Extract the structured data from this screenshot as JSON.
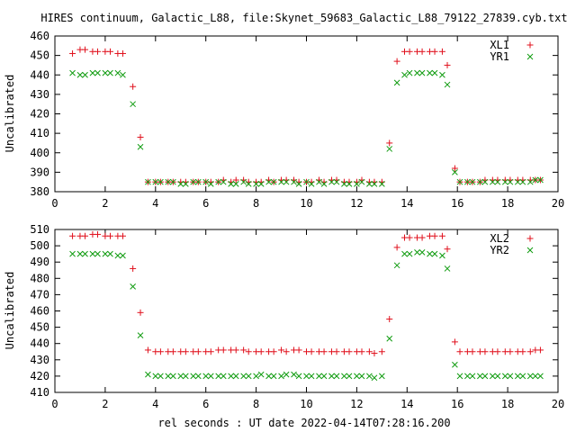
{
  "title": "HIRES continuum, Galactic_L88, file:Skynet_59683_Galactic_L88_79122_27839.cyb.txt",
  "xlabel": "rel seconds : UT date 2022-04-14T07:28:16.200",
  "chart_data": [
    {
      "type": "scatter",
      "title": "HIRES continuum, Galactic_L88, file:Skynet_59683_Galactic_L88_79122_27839.cyb.txt",
      "xlabel": "",
      "ylabel": "Uncalibrated",
      "xlim": [
        0,
        20
      ],
      "ylim": [
        380,
        460
      ],
      "xticks": [
        0,
        2,
        4,
        6,
        8,
        10,
        12,
        14,
        16,
        18,
        20
      ],
      "yticks": [
        380,
        390,
        400,
        410,
        420,
        430,
        440,
        450,
        460
      ],
      "grid": false,
      "legend_position": "top-right",
      "x": [
        0.7,
        1.0,
        1.2,
        1.5,
        1.7,
        2.0,
        2.2,
        2.5,
        2.7,
        3.1,
        3.4,
        3.7,
        4.0,
        4.2,
        4.5,
        4.7,
        5.0,
        5.2,
        5.5,
        5.7,
        6.0,
        6.2,
        6.5,
        6.7,
        7.0,
        7.2,
        7.5,
        7.7,
        8.0,
        8.2,
        8.5,
        8.7,
        9.0,
        9.2,
        9.5,
        9.7,
        10.0,
        10.2,
        10.5,
        10.7,
        11.0,
        11.2,
        11.5,
        11.7,
        12.0,
        12.2,
        12.5,
        12.7,
        13.0,
        13.3,
        13.6,
        13.9,
        14.1,
        14.4,
        14.6,
        14.9,
        15.1,
        15.4,
        15.6,
        15.9,
        16.1,
        16.4,
        16.6,
        16.9,
        17.1,
        17.4,
        17.6,
        17.9,
        18.1,
        18.4,
        18.6,
        18.9,
        19.1,
        19.3
      ],
      "series": [
        {
          "name": "XL1",
          "color": "#e0101c",
          "marker": "plus",
          "values": [
            451,
            453,
            453,
            452,
            452,
            452,
            452,
            451,
            451,
            434,
            408,
            385,
            385,
            385,
            385,
            385,
            385,
            385,
            385,
            385,
            385,
            385,
            385,
            386,
            385,
            386,
            386,
            385,
            385,
            385,
            386,
            385,
            386,
            386,
            386,
            385,
            385,
            385,
            386,
            385,
            386,
            386,
            385,
            385,
            385,
            386,
            385,
            385,
            385,
            405,
            447,
            452,
            452,
            452,
            452,
            452,
            452,
            452,
            445,
            392,
            385,
            385,
            385,
            385,
            386,
            386,
            386,
            386,
            386,
            386,
            386,
            386,
            386,
            386
          ]
        },
        {
          "name": "YR1",
          "color": "#119c11",
          "marker": "x",
          "values": [
            441,
            440,
            440,
            441,
            441,
            441,
            441,
            441,
            440,
            425,
            403,
            385,
            385,
            385,
            385,
            385,
            384,
            384,
            385,
            385,
            385,
            384,
            385,
            385,
            384,
            384,
            385,
            384,
            384,
            384,
            385,
            385,
            385,
            385,
            385,
            384,
            385,
            384,
            385,
            384,
            385,
            385,
            384,
            384,
            384,
            385,
            384,
            384,
            384,
            402,
            436,
            440,
            441,
            441,
            441,
            441,
            441,
            440,
            435,
            390,
            385,
            385,
            385,
            385,
            385,
            385,
            385,
            385,
            385,
            385,
            385,
            385,
            386,
            386
          ]
        }
      ]
    },
    {
      "type": "scatter",
      "title": "",
      "xlabel": "rel seconds : UT date 2022-04-14T07:28:16.200",
      "ylabel": "Uncalibrated",
      "xlim": [
        0,
        20
      ],
      "ylim": [
        410,
        510
      ],
      "xticks": [
        0,
        2,
        4,
        6,
        8,
        10,
        12,
        14,
        16,
        18,
        20
      ],
      "yticks": [
        410,
        420,
        430,
        440,
        450,
        460,
        470,
        480,
        490,
        500,
        510
      ],
      "grid": false,
      "legend_position": "top-right",
      "x": [
        0.7,
        1.0,
        1.2,
        1.5,
        1.7,
        2.0,
        2.2,
        2.5,
        2.7,
        3.1,
        3.4,
        3.7,
        4.0,
        4.2,
        4.5,
        4.7,
        5.0,
        5.2,
        5.5,
        5.7,
        6.0,
        6.2,
        6.5,
        6.7,
        7.0,
        7.2,
        7.5,
        7.7,
        8.0,
        8.2,
        8.5,
        8.7,
        9.0,
        9.2,
        9.5,
        9.7,
        10.0,
        10.2,
        10.5,
        10.7,
        11.0,
        11.2,
        11.5,
        11.7,
        12.0,
        12.2,
        12.5,
        12.7,
        13.0,
        13.3,
        13.6,
        13.9,
        14.1,
        14.4,
        14.6,
        14.9,
        15.1,
        15.4,
        15.6,
        15.9,
        16.1,
        16.4,
        16.6,
        16.9,
        17.1,
        17.4,
        17.6,
        17.9,
        18.1,
        18.4,
        18.6,
        18.9,
        19.1,
        19.3
      ],
      "series": [
        {
          "name": "XL2",
          "color": "#e0101c",
          "marker": "plus",
          "values": [
            506,
            506,
            506,
            507,
            507,
            506,
            506,
            506,
            506,
            486,
            459,
            436,
            435,
            435,
            435,
            435,
            435,
            435,
            435,
            435,
            435,
            435,
            436,
            436,
            436,
            436,
            436,
            435,
            435,
            435,
            435,
            435,
            436,
            435,
            436,
            436,
            435,
            435,
            435,
            435,
            435,
            435,
            435,
            435,
            435,
            435,
            435,
            434,
            435,
            455,
            499,
            505,
            505,
            505,
            505,
            506,
            506,
            506,
            498,
            441,
            435,
            435,
            435,
            435,
            435,
            435,
            435,
            435,
            435,
            435,
            435,
            435,
            436,
            436
          ]
        },
        {
          "name": "YR2",
          "color": "#119c11",
          "marker": "x",
          "values": [
            495,
            495,
            495,
            495,
            495,
            495,
            495,
            494,
            494,
            475,
            445,
            421,
            420,
            420,
            420,
            420,
            420,
            420,
            420,
            420,
            420,
            420,
            420,
            420,
            420,
            420,
            420,
            420,
            420,
            421,
            420,
            420,
            420,
            421,
            421,
            420,
            420,
            420,
            420,
            420,
            420,
            420,
            420,
            420,
            420,
            420,
            420,
            419,
            420,
            443,
            488,
            495,
            495,
            496,
            496,
            495,
            495,
            494,
            486,
            427,
            420,
            420,
            420,
            420,
            420,
            420,
            420,
            420,
            420,
            420,
            420,
            420,
            420,
            420
          ]
        }
      ]
    }
  ]
}
